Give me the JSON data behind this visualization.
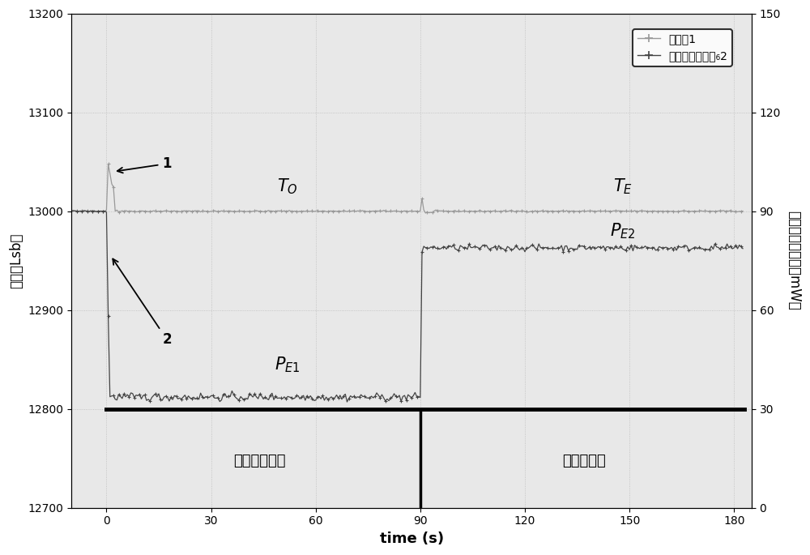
{
  "xlabel": "time (s)",
  "ylabel_left": "腔温（Lsb）",
  "ylabel_right": "加热功率采样値（mW）",
  "xlim": [
    -10,
    185
  ],
  "ylim_left": [
    12700,
    13200
  ],
  "ylim_right": [
    0,
    150
  ],
  "xticks": [
    0,
    30,
    60,
    90,
    120,
    150,
    180
  ],
  "yticks_left": [
    12700,
    12800,
    12900,
    13000,
    13100,
    13200
  ],
  "yticks_right": [
    0,
    30,
    60,
    90,
    120,
    150
  ],
  "legend_labels": [
    "新方法1",
    "加热功率采样値₆2"
  ],
  "bg_color": "#e8e8e8",
  "line1_color": "#999999",
  "line2_color": "#444444",
  "annotation1": "1",
  "annotation2": "2",
  "label_radiation": "辐射观测阶段",
  "label_electric": "电定标阶段"
}
